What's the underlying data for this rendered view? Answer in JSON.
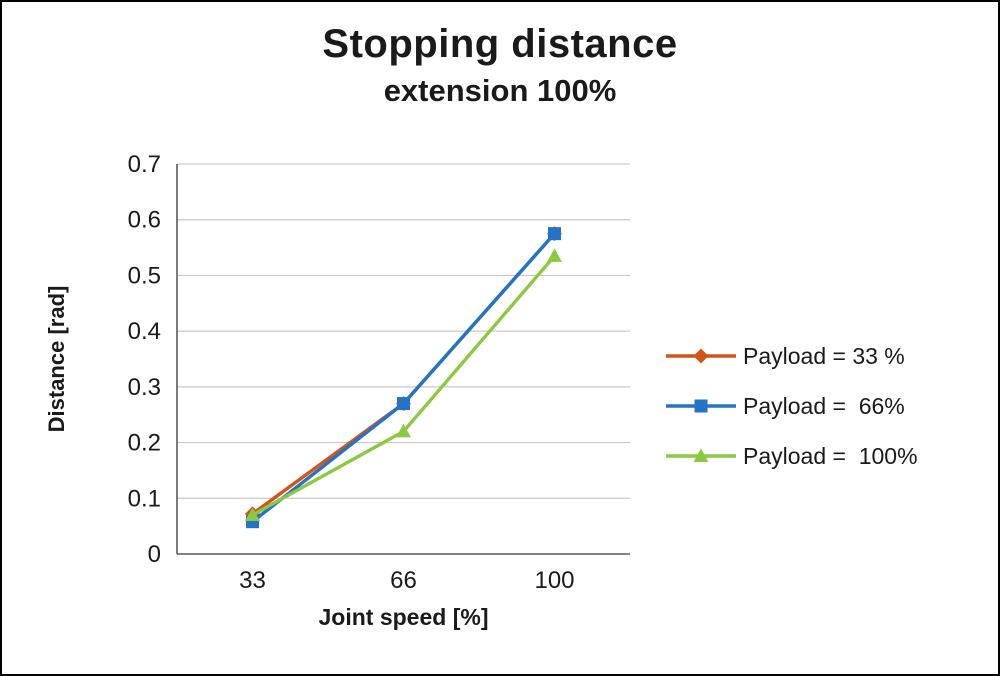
{
  "chart_data": {
    "type": "line",
    "title": "Stopping distance",
    "subtitle": "extension 100%",
    "xlabel": "Joint speed [%]",
    "ylabel": "Distance [rad]",
    "categories": [
      "33",
      "66",
      "100"
    ],
    "ylim": [
      0,
      0.7
    ],
    "ytick_step": 0.1,
    "ytick_labels": [
      "0",
      "0.1",
      "0.2",
      "0.3",
      "0.4",
      "0.5",
      "0.6",
      "0.7"
    ],
    "grid": "horizontal",
    "legend_position": "right",
    "series": [
      {
        "name": "Payload = 33 %",
        "color": "#D1541C",
        "marker": "diamond",
        "values": [
          0.072,
          0.27,
          0.575
        ]
      },
      {
        "name": "Payload =  66%",
        "color": "#2473C5",
        "marker": "square",
        "values": [
          0.058,
          0.27,
          0.575
        ]
      },
      {
        "name": "Payload =  100%",
        "color": "#8CC841",
        "marker": "triangle",
        "values": [
          0.07,
          0.22,
          0.535
        ]
      }
    ]
  }
}
